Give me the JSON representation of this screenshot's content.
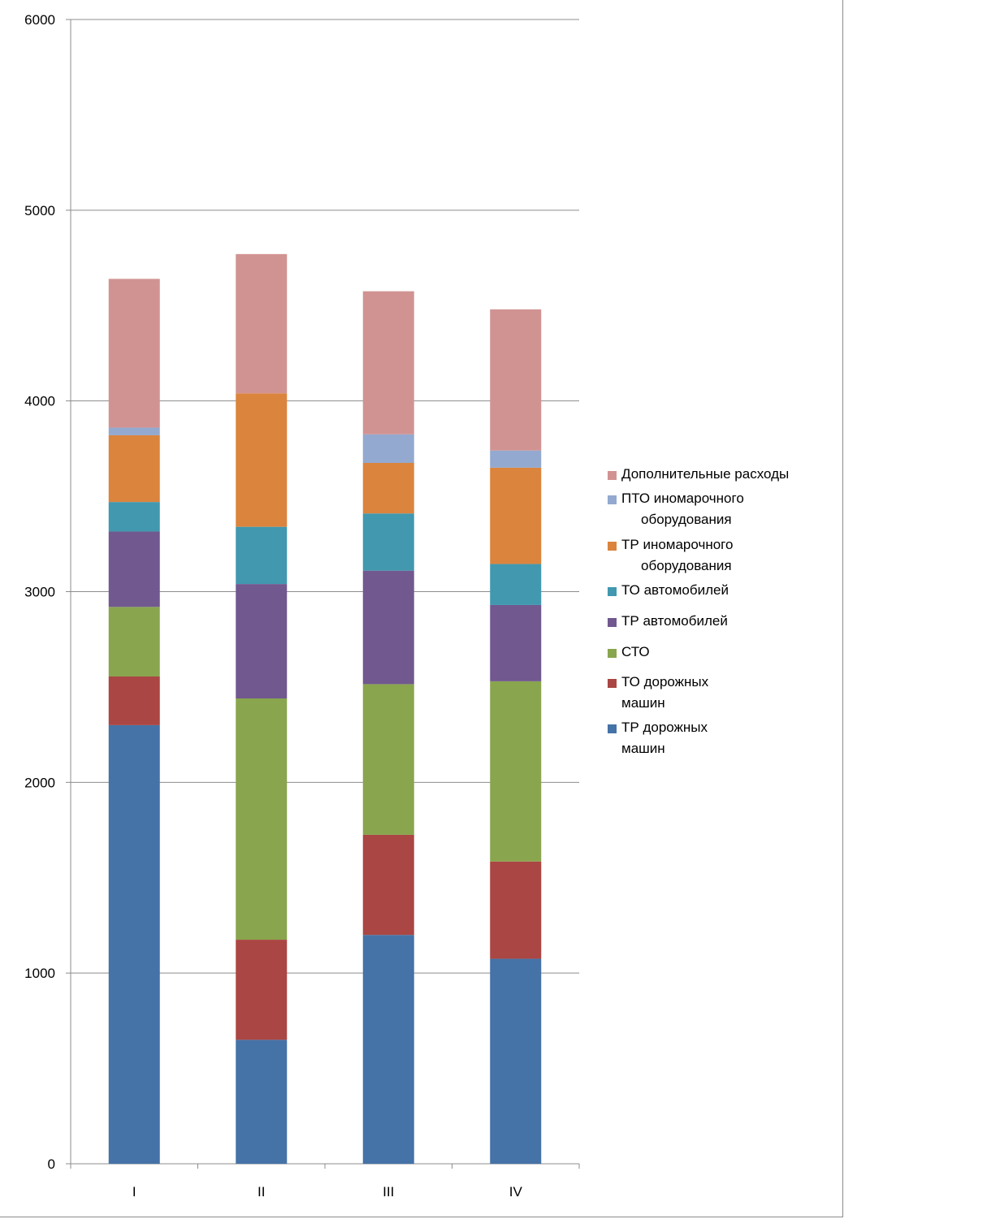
{
  "chart_data": {
    "type": "bar",
    "stacked": true,
    "categories": [
      "I",
      "II",
      "III",
      "IV"
    ],
    "ylim": [
      0,
      6000
    ],
    "yticks": [
      0,
      1000,
      2000,
      3000,
      4000,
      5000,
      6000
    ],
    "grid": true,
    "legend_position": "right",
    "series": [
      {
        "name": "ТР дорожных машин",
        "legend_lines": [
          "ТР дорожных",
          "машин"
        ],
        "color": "#4572A7",
        "values": [
          2300,
          650,
          1200,
          1075
        ]
      },
      {
        "name": "ТО дорожных машин",
        "legend_lines": [
          "ТО дорожных",
          "машин"
        ],
        "color": "#AA4643",
        "values": [
          255,
          525,
          525,
          510
        ]
      },
      {
        "name": "СТО",
        "legend_lines": [
          "СТО"
        ],
        "color": "#89A54E",
        "values": [
          365,
          1265,
          790,
          945
        ]
      },
      {
        "name": "ТР автомобилей",
        "legend_lines": [
          "ТР автомобилей"
        ],
        "color": "#71588F",
        "values": [
          395,
          600,
          595,
          400
        ]
      },
      {
        "name": "ТО автомобилей",
        "legend_lines": [
          "ТО автомобилей"
        ],
        "color": "#4198AF",
        "values": [
          155,
          300,
          300,
          215
        ]
      },
      {
        "name": "ТР иномарочного оборудования",
        "legend_lines": [
          "ТР иномарочного",
          "оборудования"
        ],
        "color": "#DB843D",
        "values": [
          350,
          700,
          265,
          505
        ]
      },
      {
        "name": "ПТО иномарочного оборудования",
        "legend_lines": [
          "ПТО иномарочного",
          "оборудования"
        ],
        "color": "#93A9CF",
        "values": [
          40,
          0,
          150,
          90
        ]
      },
      {
        "name": "Дополнительные расходы",
        "legend_lines": [
          "Дополнительные расходы"
        ],
        "color": "#D19392",
        "values": [
          780,
          730,
          750,
          740
        ]
      }
    ]
  }
}
